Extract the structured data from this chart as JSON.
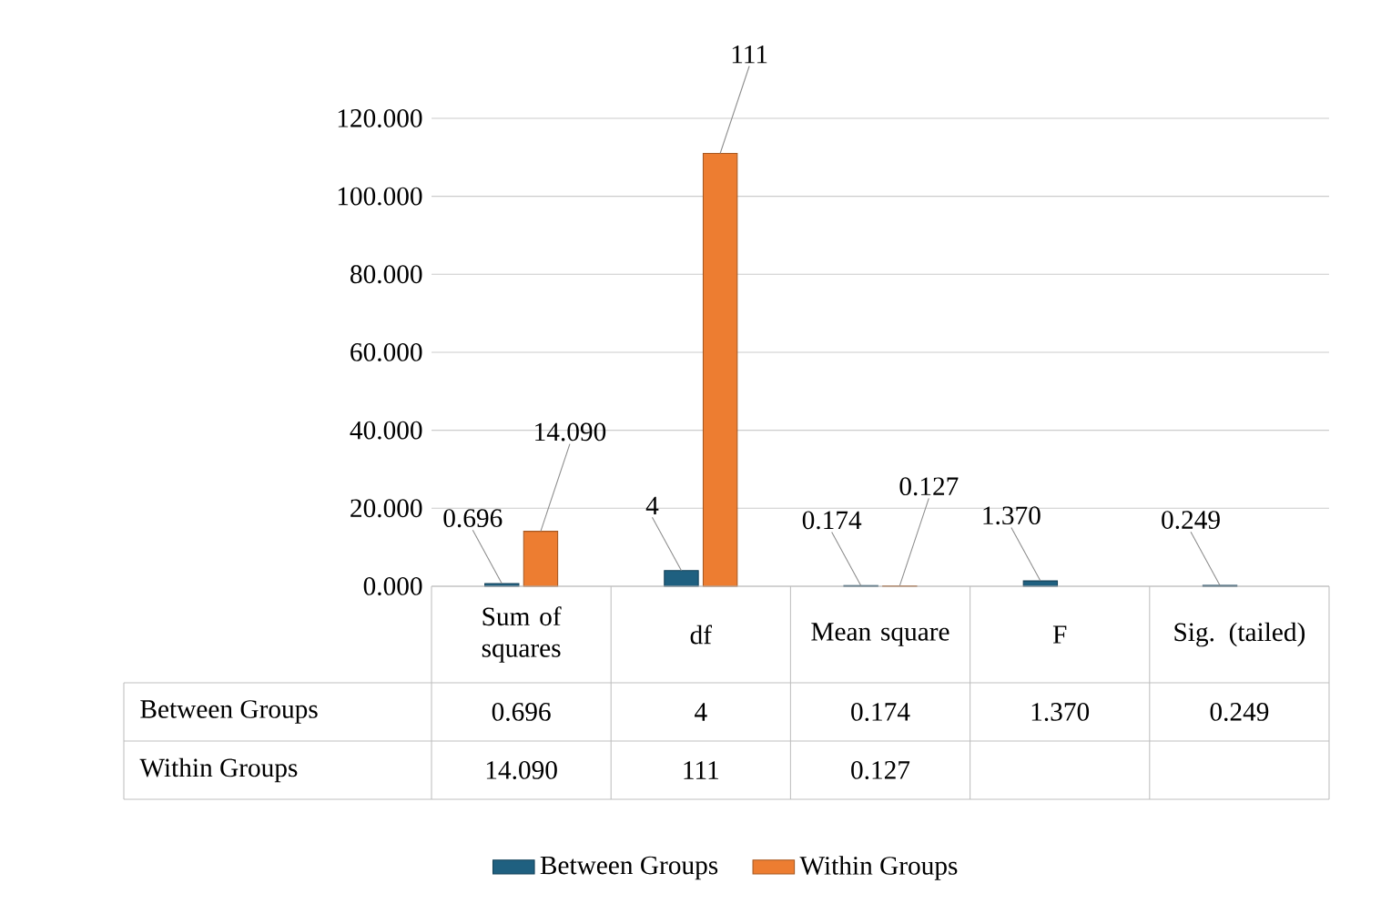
{
  "chart_data": {
    "type": "bar",
    "categories": [
      "Sum of squares",
      "df",
      "Mean square",
      "F",
      "Sig. (tailed)"
    ],
    "series": [
      {
        "name": "Between Groups",
        "color": "#1f6080",
        "values": [
          0.696,
          4,
          0.174,
          1.37,
          0.249
        ],
        "value_labels": [
          "0.696",
          "4",
          "0.174",
          "1.370",
          "0.249"
        ]
      },
      {
        "name": "Within Groups",
        "color": "#ed7d31",
        "values": [
          14.09,
          111,
          0.127,
          null,
          null
        ],
        "value_labels": [
          "14.090",
          "111",
          "0.127",
          null,
          null
        ]
      }
    ],
    "ylim": [
      0,
      120
    ],
    "yticks": [
      {
        "value": 0,
        "label": "0.000"
      },
      {
        "value": 20,
        "label": "20.000"
      },
      {
        "value": 40,
        "label": "40.000"
      },
      {
        "value": 60,
        "label": "60.000"
      },
      {
        "value": 80,
        "label": "80.000"
      },
      {
        "value": 100,
        "label": "100.000"
      },
      {
        "value": 120,
        "label": "120.000"
      }
    ],
    "grid": "y",
    "legend": "bottom"
  }
}
